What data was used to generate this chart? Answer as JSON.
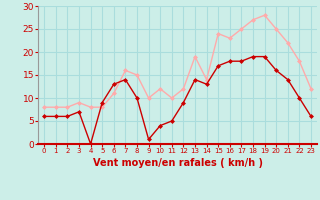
{
  "hours": [
    0,
    1,
    2,
    3,
    4,
    5,
    6,
    7,
    8,
    9,
    10,
    11,
    12,
    13,
    14,
    15,
    16,
    17,
    18,
    19,
    20,
    21,
    22,
    23
  ],
  "vent_moyen": [
    6,
    6,
    6,
    7,
    0,
    9,
    13,
    14,
    10,
    1,
    4,
    5,
    9,
    14,
    13,
    17,
    18,
    18,
    19,
    19,
    16,
    14,
    10,
    6
  ],
  "rafales": [
    8,
    8,
    8,
    9,
    8,
    8,
    11,
    16,
    15,
    10,
    12,
    10,
    12,
    19,
    14,
    24,
    23,
    25,
    27,
    28,
    25,
    22,
    18,
    12
  ],
  "color_moyen": "#cc0000",
  "color_rafales": "#ffaaaa",
  "bg_color": "#cceee8",
  "grid_color": "#aadddd",
  "xlabel": "Vent moyen/en rafales ( km/h )",
  "xlabel_color": "#cc0000",
  "tick_color": "#cc0000",
  "spine_color": "#cc0000",
  "ylim": [
    0,
    30
  ],
  "yticks": [
    0,
    5,
    10,
    15,
    20,
    25,
    30
  ],
  "xlim": [
    -0.5,
    23.5
  ]
}
